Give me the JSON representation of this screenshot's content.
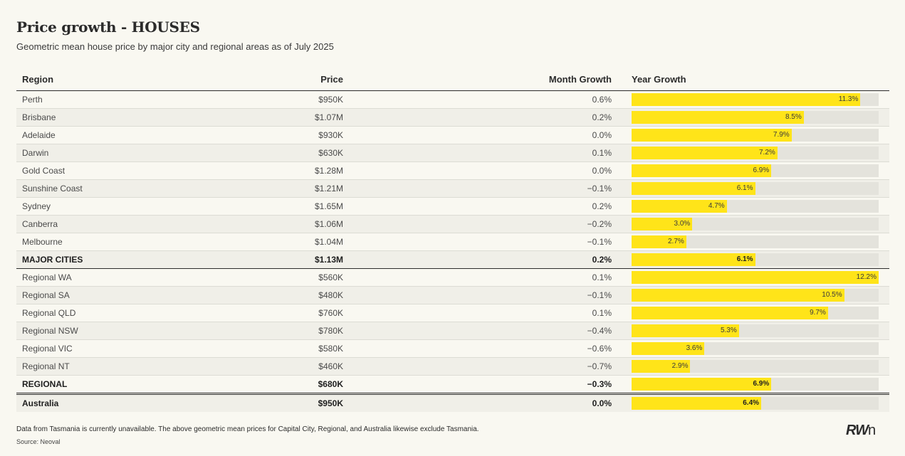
{
  "title": "Price growth - HOUSES",
  "subtitle": "Geometric mean house price by major city and regional areas as of July 2025",
  "columns": {
    "region": "Region",
    "price": "Price",
    "month": "Month Growth",
    "year": "Year Growth"
  },
  "footnote": "Data from Tasmania is currently unavailable. The above geometric mean prices for Capital City, Regional, and Australia likewise exclude Tasmania.",
  "source": "Source: Neoval",
  "logo": {
    "main": "RW",
    "tail": "n"
  },
  "colors": {
    "bar": "#ffe419",
    "track": "#e4e3dc"
  },
  "chart_data": {
    "type": "table",
    "year_growth_max": 12.2,
    "rows": [
      {
        "region": "Perth",
        "price": "$950K",
        "month": "0.6%",
        "year": 11.3,
        "year_label": "11.3%",
        "kind": "city"
      },
      {
        "region": "Brisbane",
        "price": "$1.07M",
        "month": "0.2%",
        "year": 8.5,
        "year_label": "8.5%",
        "kind": "city"
      },
      {
        "region": "Adelaide",
        "price": "$930K",
        "month": "0.0%",
        "year": 7.9,
        "year_label": "7.9%",
        "kind": "city"
      },
      {
        "region": "Darwin",
        "price": "$630K",
        "month": "0.1%",
        "year": 7.2,
        "year_label": "7.2%",
        "kind": "city"
      },
      {
        "region": "Gold Coast",
        "price": "$1.28M",
        "month": "0.0%",
        "year": 6.9,
        "year_label": "6.9%",
        "kind": "city"
      },
      {
        "region": "Sunshine Coast",
        "price": "$1.21M",
        "month": "−0.1%",
        "year": 6.1,
        "year_label": "6.1%",
        "kind": "city"
      },
      {
        "region": "Sydney",
        "price": "$1.65M",
        "month": "0.2%",
        "year": 4.7,
        "year_label": "4.7%",
        "kind": "city"
      },
      {
        "region": "Canberra",
        "price": "$1.06M",
        "month": "−0.2%",
        "year": 3.0,
        "year_label": "3.0%",
        "kind": "city"
      },
      {
        "region": "Melbourne",
        "price": "$1.04M",
        "month": "−0.1%",
        "year": 2.7,
        "year_label": "2.7%",
        "kind": "city"
      },
      {
        "region": "MAJOR CITIES",
        "price": "$1.13M",
        "month": "0.2%",
        "year": 6.1,
        "year_label": "6.1%",
        "kind": "total"
      },
      {
        "region": "Regional WA",
        "price": "$560K",
        "month": "0.1%",
        "year": 12.2,
        "year_label": "12.2%",
        "kind": "regional"
      },
      {
        "region": "Regional SA",
        "price": "$480K",
        "month": "−0.1%",
        "year": 10.5,
        "year_label": "10.5%",
        "kind": "regional"
      },
      {
        "region": "Regional QLD",
        "price": "$760K",
        "month": "0.1%",
        "year": 9.7,
        "year_label": "9.7%",
        "kind": "regional"
      },
      {
        "region": "Regional NSW",
        "price": "$780K",
        "month": "−0.4%",
        "year": 5.3,
        "year_label": "5.3%",
        "kind": "regional"
      },
      {
        "region": "Regional VIC",
        "price": "$580K",
        "month": "−0.6%",
        "year": 3.6,
        "year_label": "3.6%",
        "kind": "regional"
      },
      {
        "region": "Regional NT",
        "price": "$460K",
        "month": "−0.7%",
        "year": 2.9,
        "year_label": "2.9%",
        "kind": "regional"
      },
      {
        "region": "REGIONAL",
        "price": "$680K",
        "month": "−0.3%",
        "year": 6.9,
        "year_label": "6.9%",
        "kind": "total"
      },
      {
        "region": "Australia",
        "price": "$950K",
        "month": "0.0%",
        "year": 6.4,
        "year_label": "6.4%",
        "kind": "final"
      }
    ]
  }
}
